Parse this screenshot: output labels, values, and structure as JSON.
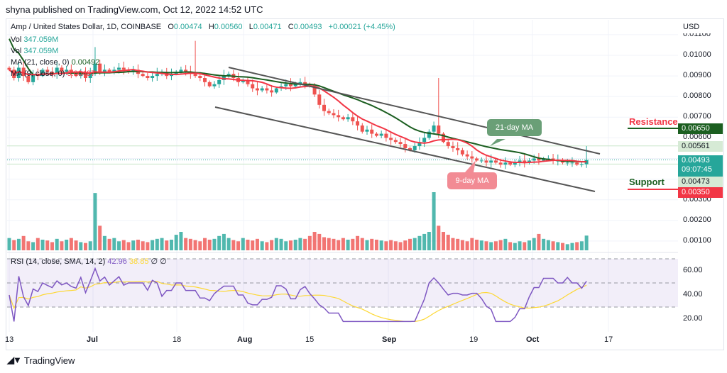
{
  "header": {
    "published": "shyna published on TradingView.com, Oct 12, 2022 14:52 UTC"
  },
  "legend": {
    "symbol": "Amp / United States Dollar, 1D, COINBASE",
    "o_label": "O",
    "o": "0.00474",
    "h_label": "H",
    "h": "0.00560",
    "l_label": "L",
    "l": "0.00471",
    "c_label": "C",
    "c": "0.00493",
    "change": "+0.00021 (+4.45%)",
    "vol1_label": "Vol",
    "vol1": "347.059M",
    "vol2_label": "Vol",
    "vol2": "347.059M",
    "ma21_label": "MA (21, close, 0)",
    "ma21": "0.00492",
    "ma9_label": "MA (9, close, 0)",
    "ma9": "0.00497",
    "rsi_label": "RSI (14, close, SMA, 14, 2)",
    "rsi": "42.96",
    "rsi_sma": "38.85",
    "rsi_x1": "∅",
    "rsi_x2": "∅"
  },
  "price_axis": {
    "currency": "USD",
    "ticks": [
      "0.01100",
      "0.01000",
      "0.00900",
      "0.00800",
      "0.00700",
      "0.00600",
      "0.00300",
      "0.00200",
      "0.00100"
    ]
  },
  "rsi_axis": {
    "ticks": [
      "60.00",
      "40.00",
      "20.00"
    ]
  },
  "time_axis": [
    "13",
    "Jul",
    "18",
    "Aug",
    "15",
    "Sep",
    "19",
    "Oct",
    "17"
  ],
  "tags": {
    "resistance": "0.00650",
    "high": "0.00561",
    "last": "0.00493",
    "countdown": "09:07:45",
    "low": "0.00473",
    "support": "0.00350"
  },
  "annotations": {
    "resistance": "Resistance",
    "support": "Support",
    "ma21": "21-day MA",
    "ma9": "9-day MA"
  },
  "colors": {
    "up": "#26a69a",
    "down": "#ef5350",
    "ma21": "#1b5e20",
    "ma9": "#f23645",
    "rsi": "#7e57c2",
    "rsi_sma": "#fdd835"
  },
  "footer": {
    "brand": "TradingView"
  },
  "chart_data": {
    "type": "candlestick",
    "start_date": "2022-06-13",
    "end_date": "2022-10-12",
    "closes": [
      0.0093,
      0.0089,
      0.0094,
      0.009,
      0.0087,
      0.0091,
      0.009,
      0.0093,
      0.0092,
      0.0091,
      0.0094,
      0.0092,
      0.0093,
      0.0091,
      0.009,
      0.0092,
      0.0089,
      0.0091,
      0.0096,
      0.0092,
      0.0093,
      0.0092,
      0.0093,
      0.0094,
      0.0093,
      0.0092,
      0.0093,
      0.0091,
      0.009,
      0.0089,
      0.009,
      0.0091,
      0.0092,
      0.009,
      0.0091,
      0.0092,
      0.0093,
      0.0092,
      0.0091,
      0.009,
      0.0089,
      0.0087,
      0.0085,
      0.0086,
      0.0088,
      0.009,
      0.0091,
      0.0089,
      0.0087,
      0.0088,
      0.0086,
      0.0084,
      0.0083,
      0.0084,
      0.0083,
      0.0082,
      0.0084,
      0.0085,
      0.0086,
      0.0085,
      0.0086,
      0.0087,
      0.0086,
      0.0085,
      0.0081,
      0.0076,
      0.0073,
      0.0072,
      0.0071,
      0.007,
      0.0069,
      0.007,
      0.0068,
      0.0066,
      0.0063,
      0.0064,
      0.0062,
      0.0061,
      0.0062,
      0.006,
      0.0059,
      0.0058,
      0.0057,
      0.0055,
      0.0054,
      0.0056,
      0.0058,
      0.006,
      0.0063,
      0.0066,
      0.0062,
      0.0058,
      0.0056,
      0.0055,
      0.0054,
      0.0052,
      0.0051,
      0.005,
      0.0049,
      0.0049,
      0.0048,
      0.0049,
      0.0048,
      0.0047,
      0.0048,
      0.0047,
      0.0048,
      0.0049,
      0.0048,
      0.0049,
      0.005,
      0.0049,
      0.005,
      0.005,
      0.0049,
      0.0049,
      0.0048,
      0.0048,
      0.0048,
      0.0047,
      0.00472,
      0.00493
    ],
    "volumes": [
      30,
      25,
      28,
      35,
      22,
      20,
      30,
      26,
      24,
      20,
      28,
      22,
      26,
      30,
      24,
      20,
      18,
      22,
      140,
      60,
      35,
      28,
      30,
      22,
      25,
      20,
      24,
      26,
      22,
      20,
      25,
      28,
      30,
      24,
      26,
      38,
      45,
      30,
      28,
      25,
      22,
      30,
      26,
      28,
      35,
      40,
      30,
      25,
      22,
      30,
      26,
      24,
      28,
      22,
      20,
      25,
      30,
      28,
      22,
      24,
      26,
      30,
      28,
      35,
      45,
      40,
      32,
      30,
      28,
      25,
      30,
      26,
      28,
      35,
      30,
      25,
      28,
      26,
      24,
      22,
      25,
      22,
      20,
      24,
      28,
      30,
      35,
      40,
      45,
      142,
      60,
      45,
      38,
      30,
      28,
      25,
      22,
      30,
      26,
      24,
      22,
      20,
      22,
      25,
      28,
      20,
      18,
      22,
      20,
      24,
      30,
      40,
      28,
      25,
      22,
      20,
      18,
      15,
      18,
      20,
      22,
      36
    ],
    "price_range": [
      0.0005,
      0.0115
    ],
    "rsi_range": [
      10,
      70
    ]
  }
}
